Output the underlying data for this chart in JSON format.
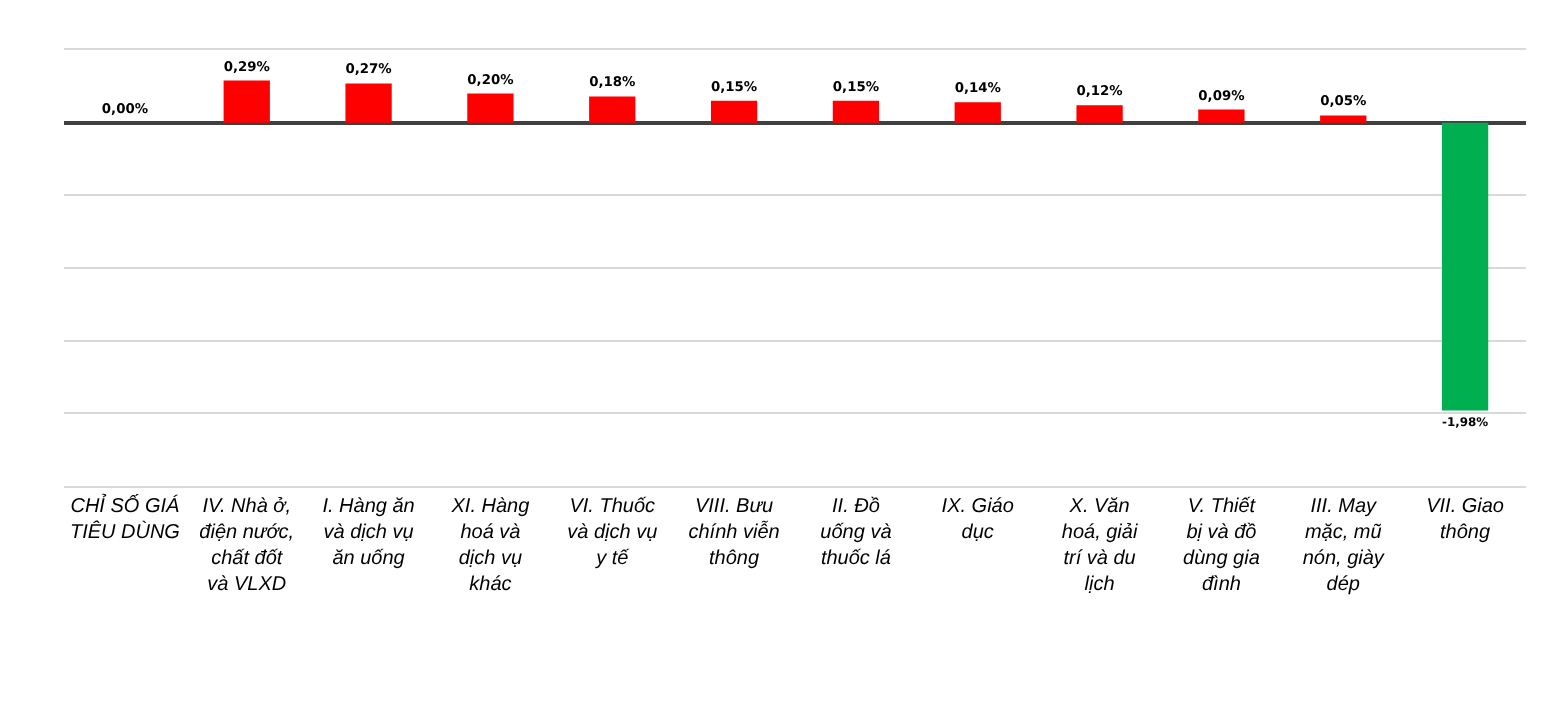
{
  "chart_data": {
    "type": "bar",
    "categories": [
      "CHỈ SỐ GIÁ TIÊU DÙNG",
      "IV. Nhà ở, điện nước, chất đốt và VLXD",
      "I. Hàng ăn và dịch vụ ăn uống",
      "XI. Hàng hoá và dịch vụ khác",
      "VI. Thuốc và dịch vụ y tế",
      "VIII. Bưu chính viễn thông",
      "II. Đồ uống và thuốc lá",
      "IX. Giáo dục",
      "X. Văn hoá, giải trí và du lịch",
      "V. Thiết bị và đồ dùng gia đình",
      "III. May mặc, mũ nón, giày dép",
      "VII. Giao thông"
    ],
    "values": [
      0.0,
      0.29,
      0.27,
      0.2,
      0.18,
      0.15,
      0.15,
      0.14,
      0.12,
      0.09,
      0.05,
      -1.98
    ],
    "colors": [
      "#ff0000",
      "#ff0000",
      "#ff0000",
      "#ff0000",
      "#ff0000",
      "#ff0000",
      "#ff0000",
      "#ff0000",
      "#ff0000",
      "#ff0000",
      "#ff0000",
      "#00b050"
    ],
    "value_labels": [
      "0,00%",
      "0,29%",
      "0,27%",
      "0,20%",
      "0,18%",
      "0,15%",
      "0,15%",
      "0,14%",
      "0,12%",
      "0,09%",
      "0,05%",
      "-1,98%"
    ],
    "ylim": [
      -2.5,
      0.5
    ],
    "grid": "y",
    "tick_labels": "x",
    "legend": false
  }
}
